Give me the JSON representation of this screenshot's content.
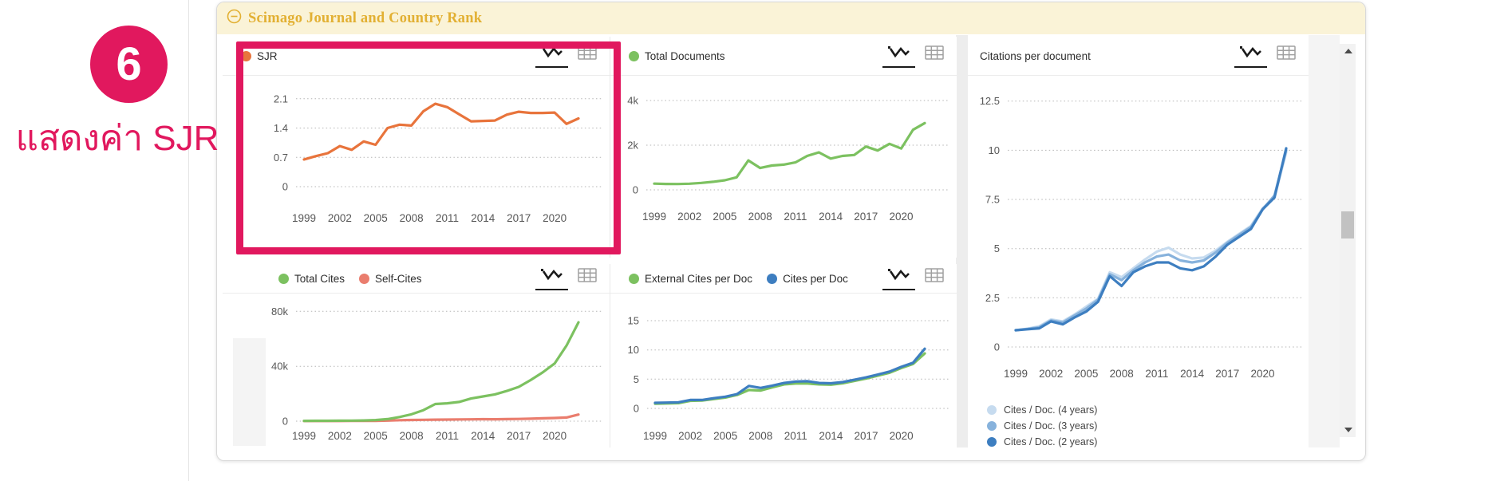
{
  "annotation": {
    "step_number": "6",
    "label": "แสดงค่า SJR",
    "accent_color": "#e1185e"
  },
  "panel": {
    "title": "Scimago Journal and Country Rank",
    "title_color": "#e2b033",
    "header_bg": "#faf3d7"
  },
  "charts": {
    "x_tick_labels": [
      "1999",
      "2002",
      "2005",
      "2008",
      "2011",
      "2014",
      "2017",
      "2020"
    ],
    "years": [
      1999,
      2000,
      2001,
      2002,
      2003,
      2004,
      2005,
      2006,
      2007,
      2008,
      2009,
      2010,
      2011,
      2012,
      2013,
      2014,
      2015,
      2016,
      2017,
      2018,
      2019,
      2020,
      2021,
      2022
    ],
    "items": [
      {
        "id": "sjr",
        "type": "line",
        "legend": [
          {
            "label": "SJR",
            "color": "#e8743c"
          }
        ],
        "y_ticks": [
          {
            "label": "0",
            "v": 0
          },
          {
            "label": "0.7",
            "v": 0.7
          },
          {
            "label": "1.4",
            "v": 1.4
          },
          {
            "label": "2.1",
            "v": 2.1
          }
        ],
        "y_max": 2.42,
        "series": [
          {
            "name": "SJR",
            "color": "#e8743c",
            "values": [
              0.65,
              0.73,
              0.8,
              0.97,
              0.88,
              1.08,
              1.0,
              1.4,
              1.48,
              1.46,
              1.8,
              1.98,
              1.9,
              1.73,
              1.56,
              1.57,
              1.58,
              1.72,
              1.79,
              1.76,
              1.76,
              1.77,
              1.5,
              1.63
            ]
          }
        ]
      },
      {
        "id": "total-documents",
        "type": "line",
        "legend": [
          {
            "label": "Total Documents",
            "color": "#7cc160"
          }
        ],
        "y_ticks": [
          {
            "label": "0",
            "v": 0
          },
          {
            "label": "2k",
            "v": 2000
          },
          {
            "label": "4k",
            "v": 4000
          }
        ],
        "y_max": 4680,
        "series": [
          {
            "name": "Total Documents",
            "color": "#7cc160",
            "values": [
              280,
              265,
              260,
              275,
              310,
              360,
              430,
              560,
              1320,
              980,
              1090,
              1130,
              1230,
              1520,
              1680,
              1400,
              1520,
              1560,
              1940,
              1760,
              2060,
              1850,
              2690,
              2990
            ]
          }
        ]
      },
      {
        "id": "citations-per-document",
        "type": "line",
        "title": "Citations per document",
        "legend": [],
        "bottom_legend": [
          {
            "label": "Cites / Doc. (4 years)",
            "color": "#c6dbef"
          },
          {
            "label": "Cites / Doc. (3 years)",
            "color": "#87b2dc"
          },
          {
            "label": "Cites / Doc. (2 years)",
            "color": "#3d7ec0"
          }
        ],
        "y_ticks": [
          {
            "label": "0",
            "v": 0
          },
          {
            "label": "2.5",
            "v": 2.5
          },
          {
            "label": "5",
            "v": 5
          },
          {
            "label": "7.5",
            "v": 7.5
          },
          {
            "label": "10",
            "v": 10
          },
          {
            "label": "12.5",
            "v": 12.5
          }
        ],
        "y_max": 13.3,
        "series": [
          {
            "name": "Cites / Doc. (4 years)",
            "color": "#c6dbef",
            "values": [
              0.85,
              0.93,
              1.05,
              1.4,
              1.3,
              1.65,
              2.05,
              2.45,
              3.8,
              3.55,
              4.0,
              4.45,
              4.85,
              5.05,
              4.7,
              4.5,
              4.55,
              4.9,
              5.35,
              5.75,
              6.15,
              7.05,
              7.6,
              9.9
            ]
          },
          {
            "name": "Cites / Doc. (3 years)",
            "color": "#87b2dc",
            "values": [
              0.85,
              0.92,
              1.0,
              1.35,
              1.25,
              1.6,
              1.95,
              2.4,
              3.7,
              3.4,
              3.9,
              4.3,
              4.6,
              4.7,
              4.4,
              4.3,
              4.4,
              4.8,
              5.3,
              5.7,
              6.1,
              7.0,
              7.7,
              10.0
            ]
          },
          {
            "name": "Cites / Doc. (2 years)",
            "color": "#3d7ec0",
            "values": [
              0.85,
              0.9,
              0.95,
              1.3,
              1.15,
              1.5,
              1.8,
              2.3,
              3.6,
              3.1,
              3.8,
              4.1,
              4.3,
              4.3,
              4.0,
              3.9,
              4.1,
              4.6,
              5.2,
              5.6,
              6.0,
              7.0,
              7.6,
              10.1
            ]
          }
        ]
      },
      {
        "id": "total-cites-self-cites",
        "type": "line",
        "legend": [
          {
            "label": "Total Cites",
            "color": "#7cc160"
          },
          {
            "label": "Self-Cites",
            "color": "#ea7d6e"
          }
        ],
        "y_ticks": [
          {
            "label": "0",
            "v": 0
          },
          {
            "label": "40k",
            "v": 40000
          },
          {
            "label": "80k",
            "v": 80000
          }
        ],
        "y_max": 86000,
        "series": [
          {
            "name": "Self-Cites",
            "color": "#ea7d6e",
            "values": [
              100,
              110,
              120,
              130,
              150,
              180,
              250,
              400,
              700,
              900,
              1000,
              1100,
              1150,
              1250,
              1350,
              1450,
              1400,
              1500,
              1600,
              1800,
              2100,
              2300,
              2700,
              4800
            ]
          },
          {
            "name": "Total Cites",
            "color": "#7cc160",
            "values": [
              250,
              280,
              300,
              330,
              400,
              500,
              800,
              1500,
              3000,
              5000,
              8000,
              12500,
              13000,
              14000,
              16500,
              18000,
              19500,
              22000,
              25000,
              30000,
              35500,
              42000,
              55000,
              72000
            ]
          }
        ]
      },
      {
        "id": "external-cites-per-doc",
        "type": "line",
        "legend": [
          {
            "label": "External Cites per Doc",
            "color": "#7cc160"
          },
          {
            "label": "Cites per Doc",
            "color": "#3d7ec0"
          }
        ],
        "y_ticks": [
          {
            "label": "0",
            "v": 0
          },
          {
            "label": "5",
            "v": 5
          },
          {
            "label": "10",
            "v": 10
          },
          {
            "label": "15",
            "v": 15
          }
        ],
        "y_max": 18,
        "series": [
          {
            "name": "External Cites per Doc",
            "color": "#7cc160",
            "values": [
              0.8,
              0.85,
              0.9,
              1.3,
              1.35,
              1.6,
              1.85,
              2.3,
              3.15,
              3.05,
              3.6,
              4.1,
              4.25,
              4.25,
              4.1,
              4.05,
              4.3,
              4.7,
              5.1,
              5.6,
              6.1,
              6.9,
              7.6,
              9.4
            ]
          },
          {
            "name": "Cites per Doc",
            "color": "#3d7ec0",
            "values": [
              0.95,
              1.0,
              1.05,
              1.45,
              1.45,
              1.75,
              2.0,
              2.45,
              3.85,
              3.5,
              3.9,
              4.35,
              4.6,
              4.65,
              4.35,
              4.3,
              4.5,
              4.9,
              5.3,
              5.8,
              6.3,
              7.1,
              7.8,
              10.2
            ]
          }
        ]
      }
    ]
  }
}
